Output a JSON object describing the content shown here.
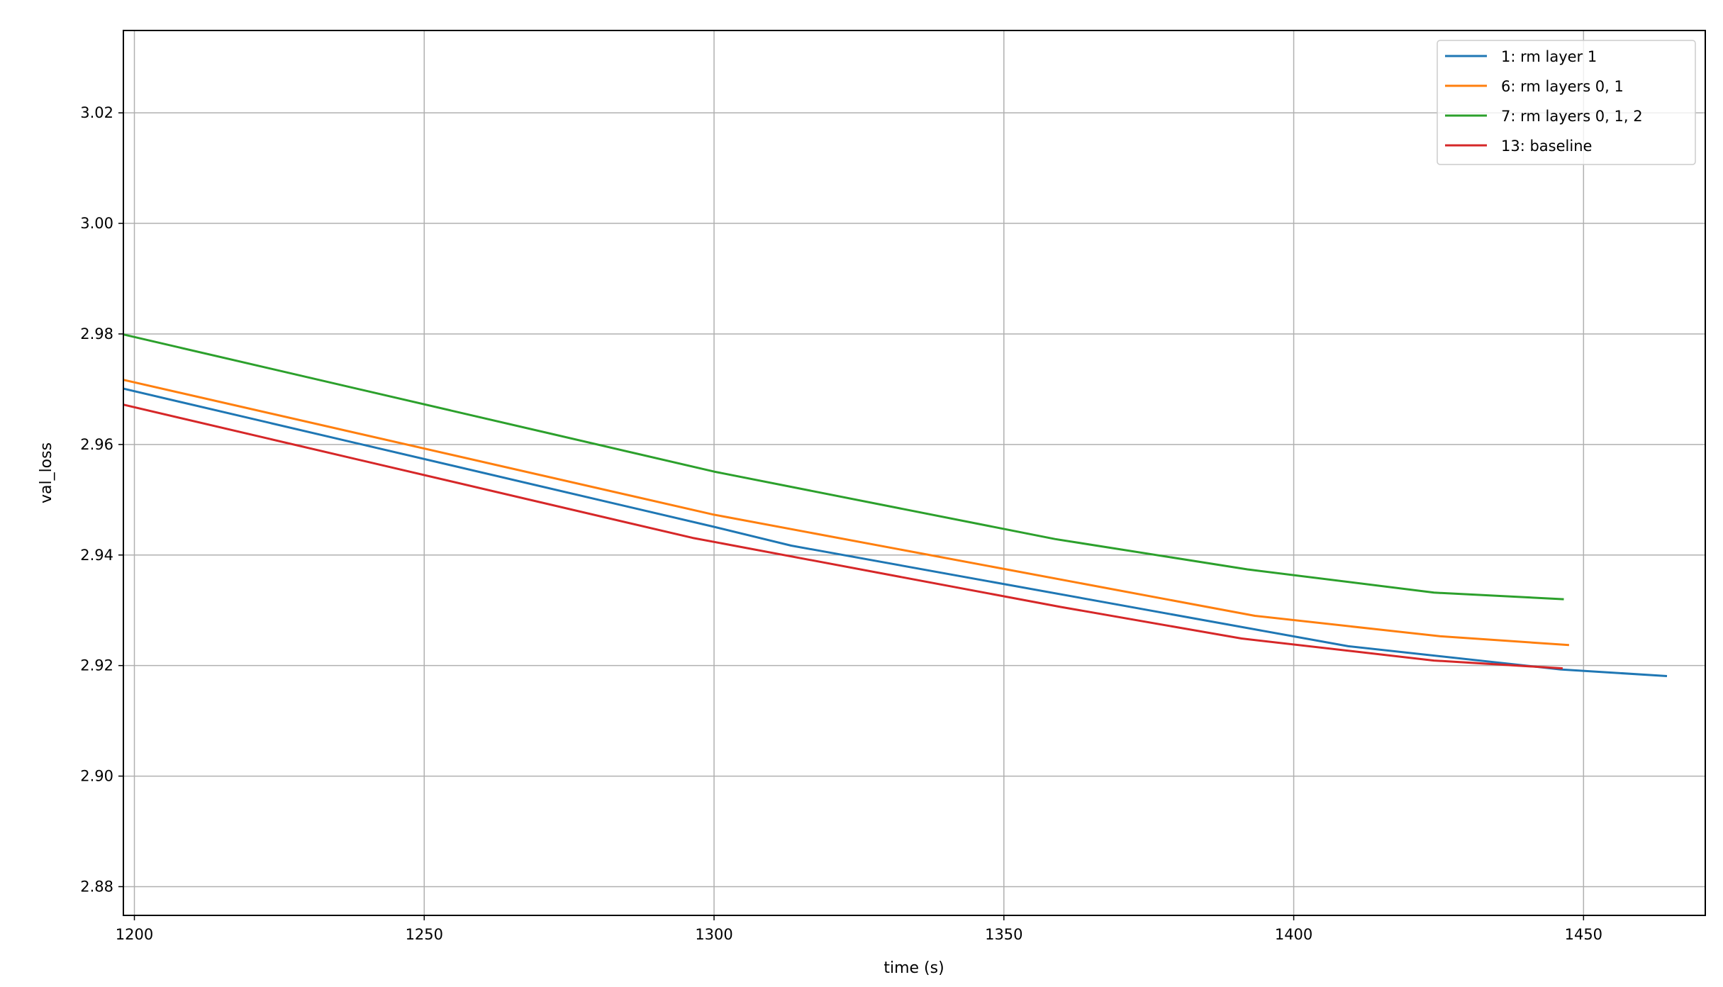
{
  "chart_data": {
    "type": "line",
    "title": "",
    "xlabel": "time (s)",
    "ylabel": "val_loss",
    "xlim": [
      1198.1,
      1471
    ],
    "ylim": [
      2.8748,
      3.0349
    ],
    "xticks": [
      1200,
      1250,
      1300,
      1350,
      1400,
      1450
    ],
    "xtick_labels": [
      "1200",
      "1250",
      "1300",
      "1350",
      "1400",
      "1450"
    ],
    "yticks": [
      2.88,
      2.9,
      2.92,
      2.94,
      2.96,
      2.98,
      3.0,
      3.02
    ],
    "ytick_labels": [
      "2.88",
      "2.90",
      "2.92",
      "2.94",
      "2.96",
      "2.98",
      "3.00",
      "3.02"
    ],
    "grid": true,
    "legend_placement": "top-right",
    "series": [
      {
        "name": "1: rm layer 1",
        "color": "#1f77b4",
        "x": [
          1198.1,
          1300,
          1313.3,
          1409.4,
          1446,
          1464.4
        ],
        "y": [
          2.9701,
          2.9451,
          2.9417,
          2.9235,
          2.9193,
          2.9181
        ]
      },
      {
        "name": "6: rm layers 0, 1",
        "color": "#ff7f0e",
        "x": [
          1198.1,
          1300,
          1393.3,
          1425.2,
          1447.5
        ],
        "y": [
          2.9717,
          2.9473,
          2.929,
          2.9253,
          2.9237
        ]
      },
      {
        "name": "7: rm layers 0, 1, 2",
        "color": "#2ca02c",
        "x": [
          1198.1,
          1300,
          1358.8,
          1392,
          1424.2,
          1446.6
        ],
        "y": [
          2.9799,
          2.9551,
          2.9429,
          2.9374,
          2.9332,
          2.932
        ]
      },
      {
        "name": "13: baseline",
        "color": "#d62728",
        "x": [
          1198.1,
          1296.3,
          1359.8,
          1391,
          1424.2,
          1446.4
        ],
        "y": [
          2.9672,
          2.9431,
          2.9306,
          2.9249,
          2.9209,
          2.9195
        ]
      }
    ]
  }
}
